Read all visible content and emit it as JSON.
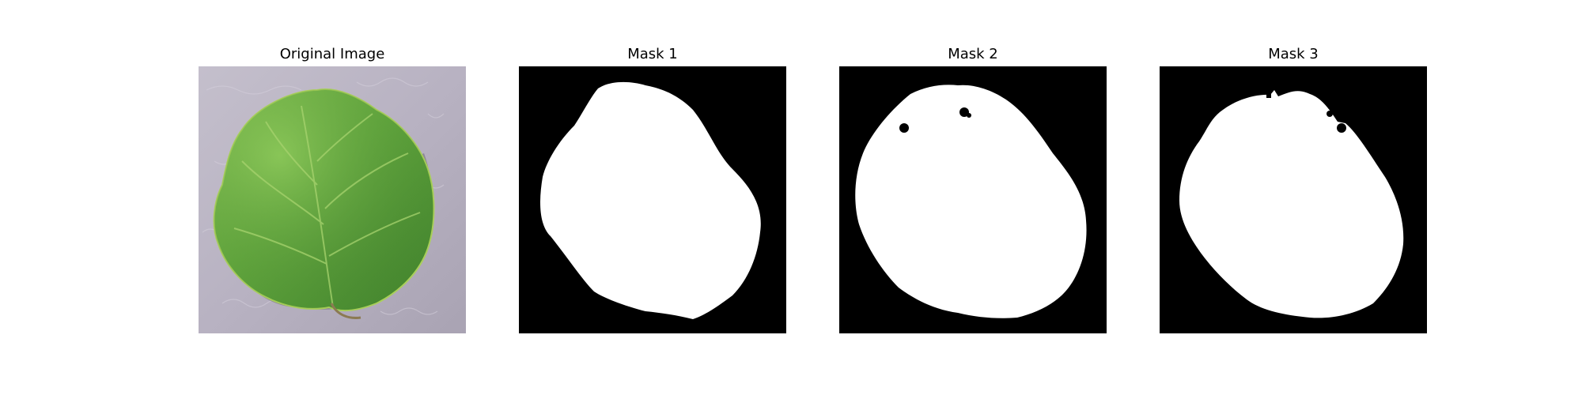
{
  "figure": {
    "panels": [
      {
        "title": "Original Image",
        "kind": "photo"
      },
      {
        "title": "Mask 1",
        "kind": "mask"
      },
      {
        "title": "Mask 2",
        "kind": "mask"
      },
      {
        "title": "Mask 3",
        "kind": "mask"
      }
    ]
  },
  "colors": {
    "background": "#ffffff",
    "mask_background": "#000000",
    "mask_foreground": "#ffffff",
    "photo_background": "#b9b2c2",
    "leaf_light": "#7fbf4a",
    "leaf_mid": "#5ea43a",
    "leaf_dark": "#3f7f2c",
    "shadow": "#6d6878"
  }
}
